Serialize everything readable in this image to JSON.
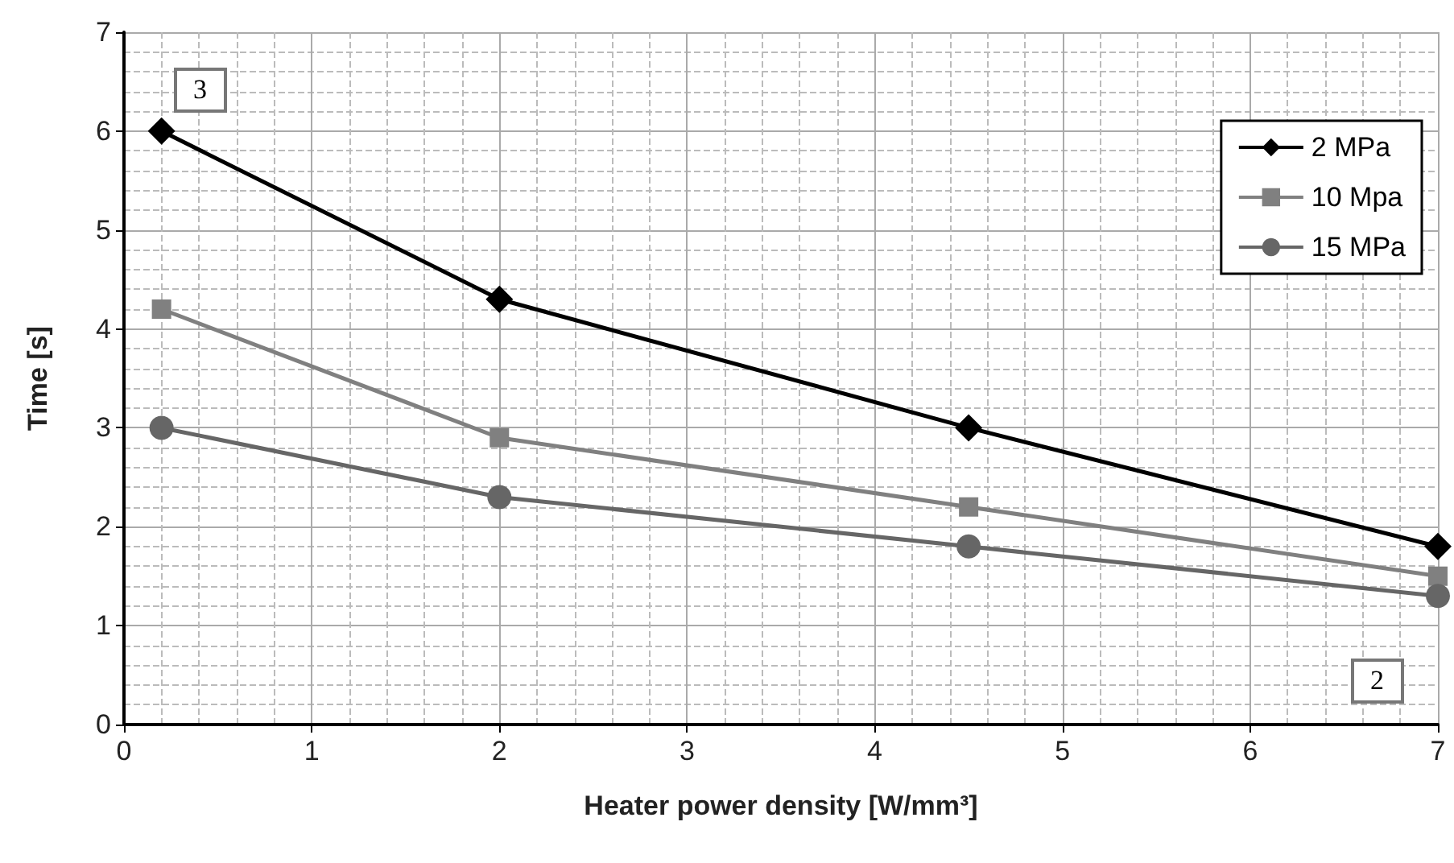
{
  "chart_data": {
    "type": "line",
    "xlabel": "Heater power density [W/mm³]",
    "ylabel": "Time [s]",
    "x": [
      0.2,
      2,
      4.5,
      7
    ],
    "series": [
      {
        "name": "2 MPa",
        "color": "#000000",
        "marker": "diamond",
        "values": [
          6.0,
          4.3,
          3.0,
          1.8
        ]
      },
      {
        "name": "10 Mpa",
        "color": "#808080",
        "marker": "square",
        "values": [
          4.2,
          2.9,
          2.2,
          1.5
        ]
      },
      {
        "name": "15 MPa",
        "color": "#666666",
        "marker": "circle",
        "values": [
          3.0,
          2.3,
          1.8,
          1.3
        ]
      }
    ],
    "xlim": [
      0,
      7
    ],
    "xticks": [
      0,
      1,
      2,
      3,
      4,
      5,
      6,
      7
    ],
    "ylim": [
      0,
      7
    ],
    "yticks": [
      0,
      1,
      2,
      3,
      4,
      5,
      6,
      7
    ],
    "grid": true,
    "legend": "top right",
    "line_style": "solid",
    "annotations": [
      "3",
      "2"
    ]
  }
}
